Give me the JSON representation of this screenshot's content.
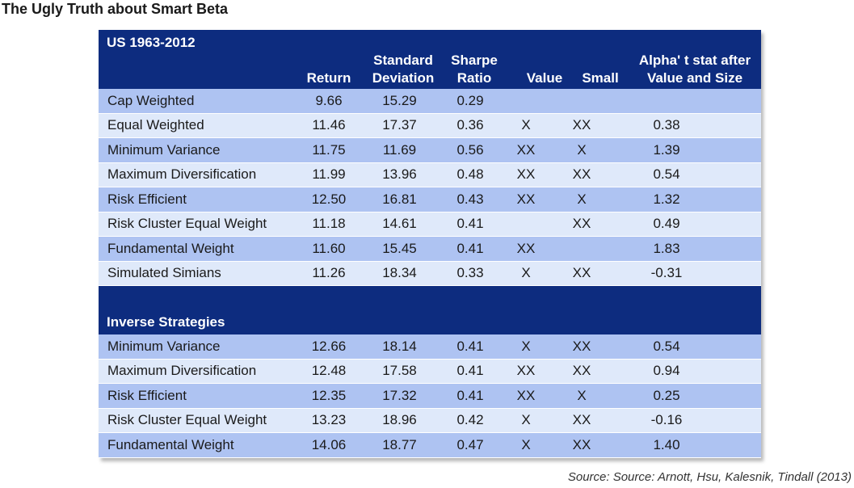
{
  "title": "The Ugly Truth about Smart Beta",
  "columns": {
    "return": [
      "Return"
    ],
    "std_dev": [
      "Standard",
      "Deviation"
    ],
    "sharpe": [
      "Sharpe",
      "Ratio"
    ],
    "value": [
      "Value"
    ],
    "small": [
      "Small"
    ],
    "alpha": [
      "Alpha' t stat after",
      "Value and Size"
    ]
  },
  "sections": [
    {
      "title": "US 1963-2012",
      "rows": [
        {
          "name": "Cap Weighted",
          "return": "9.66",
          "std_dev": "15.29",
          "sharpe": "0.29",
          "value": "",
          "small": "",
          "alpha": ""
        },
        {
          "name": "Equal Weighted",
          "return": "11.46",
          "std_dev": "17.37",
          "sharpe": "0.36",
          "value": "X",
          "small": "XX",
          "alpha": "0.38"
        },
        {
          "name": "Minimum Variance",
          "return": "11.75",
          "std_dev": "11.69",
          "sharpe": "0.56",
          "value": "XX",
          "small": "X",
          "alpha": "1.39"
        },
        {
          "name": "Maximum Diversification",
          "return": "11.99",
          "std_dev": "13.96",
          "sharpe": "0.48",
          "value": "XX",
          "small": "XX",
          "alpha": "0.54"
        },
        {
          "name": "Risk Efficient",
          "return": "12.50",
          "std_dev": "16.81",
          "sharpe": "0.43",
          "value": "XX",
          "small": "X",
          "alpha": "1.32"
        },
        {
          "name": "Risk Cluster Equal Weight",
          "return": "11.18",
          "std_dev": "14.61",
          "sharpe": "0.41",
          "value": "",
          "small": "XX",
          "alpha": "0.49"
        },
        {
          "name": "Fundamental Weight",
          "return": "11.60",
          "std_dev": "15.45",
          "sharpe": "0.41",
          "value": "XX",
          "small": "",
          "alpha": "1.83"
        },
        {
          "name": "Simulated Simians",
          "return": "11.26",
          "std_dev": "18.34",
          "sharpe": "0.33",
          "value": "X",
          "small": "XX",
          "alpha": "-0.31"
        }
      ]
    },
    {
      "title": "Inverse Strategies",
      "rows": [
        {
          "name": "Minimum Variance",
          "return": "12.66",
          "std_dev": "18.14",
          "sharpe": "0.41",
          "value": "X",
          "small": "XX",
          "alpha": "0.54"
        },
        {
          "name": "Maximum Diversification",
          "return": "12.48",
          "std_dev": "17.58",
          "sharpe": "0.41",
          "value": "XX",
          "small": "XX",
          "alpha": "0.94"
        },
        {
          "name": "Risk Efficient",
          "return": "12.35",
          "std_dev": "17.32",
          "sharpe": "0.41",
          "value": "XX",
          "small": "X",
          "alpha": "0.25"
        },
        {
          "name": "Risk Cluster Equal Weight",
          "return": "13.23",
          "std_dev": "18.96",
          "sharpe": "0.42",
          "value": "X",
          "small": "XX",
          "alpha": "-0.16"
        },
        {
          "name": "Fundamental Weight",
          "return": "14.06",
          "std_dev": "18.77",
          "sharpe": "0.47",
          "value": "X",
          "small": "XX",
          "alpha": "1.40"
        }
      ]
    }
  ],
  "source": "Source: Source: Arnott, Hsu, Kalesnik, Tindall (2013)"
}
